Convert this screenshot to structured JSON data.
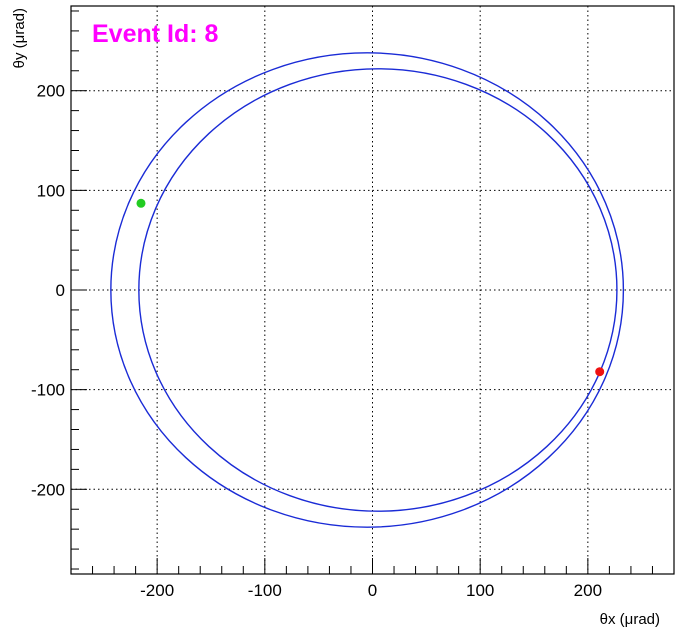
{
  "chart_data": {
    "type": "scatter",
    "title": "Event Id: 8",
    "xlabel": "θx (μrad)",
    "ylabel": "θy (μrad)",
    "xlim": [
      -280,
      280
    ],
    "ylim": [
      -285,
      285
    ],
    "x_ticks": [
      -200,
      -100,
      0,
      100,
      200
    ],
    "x_tick_labels": [
      "-200",
      "-100",
      "0",
      "100",
      "200"
    ],
    "y_ticks": [
      -200,
      -100,
      0,
      100,
      200
    ],
    "y_tick_labels": [
      "-200",
      "-100",
      "0",
      "100",
      "200"
    ],
    "grid": true,
    "circles": [
      {
        "cx": -5,
        "cy": 0,
        "r": 238
      },
      {
        "cx": 5,
        "cy": 0,
        "r": 222
      }
    ],
    "points": [
      {
        "x": -215,
        "y": 87
      },
      {
        "x": 211,
        "y": -82
      }
    ],
    "colors": {
      "circle": "#1a2bd6",
      "point_green": "#22cc22",
      "point_red": "#ee1111",
      "title": "#ff00ff"
    }
  }
}
